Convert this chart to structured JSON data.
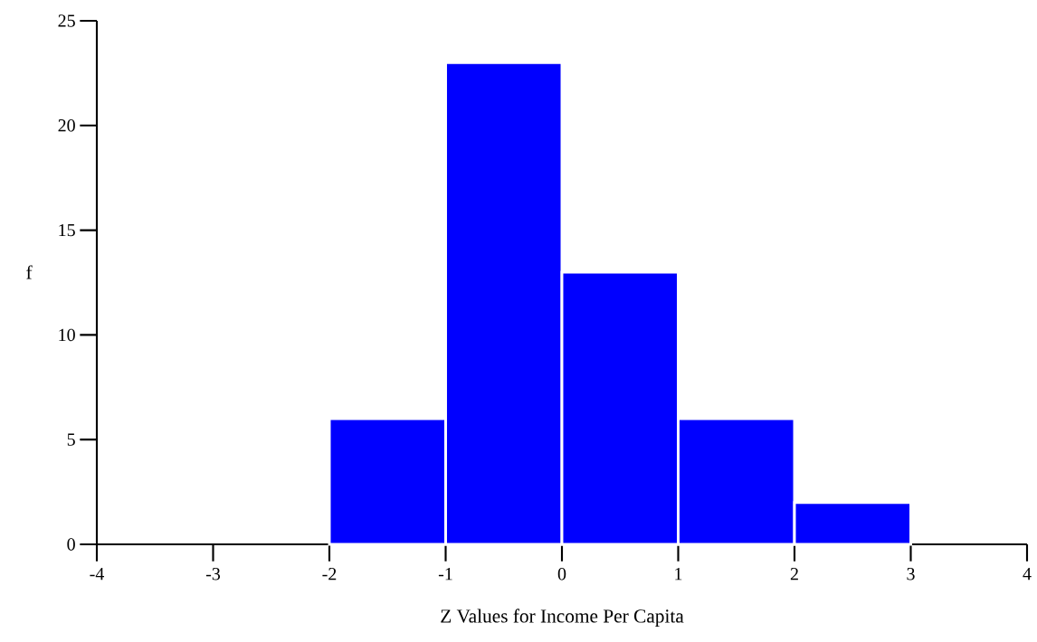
{
  "chart_data": {
    "type": "histogram",
    "xlabel": "Z Values for Income Per Capita",
    "ylabel": "f",
    "bins": [
      -2,
      -1,
      0,
      1,
      2,
      3
    ],
    "values": [
      6,
      23,
      13,
      6,
      2
    ],
    "color": "#0000ff",
    "xlim": [
      -4,
      4
    ],
    "xticks": [
      -4,
      -3,
      -2,
      -1,
      0,
      1,
      2,
      3,
      4
    ],
    "ylim": [
      0,
      25
    ],
    "yticks": [
      0,
      5,
      10,
      15,
      20,
      25
    ]
  }
}
